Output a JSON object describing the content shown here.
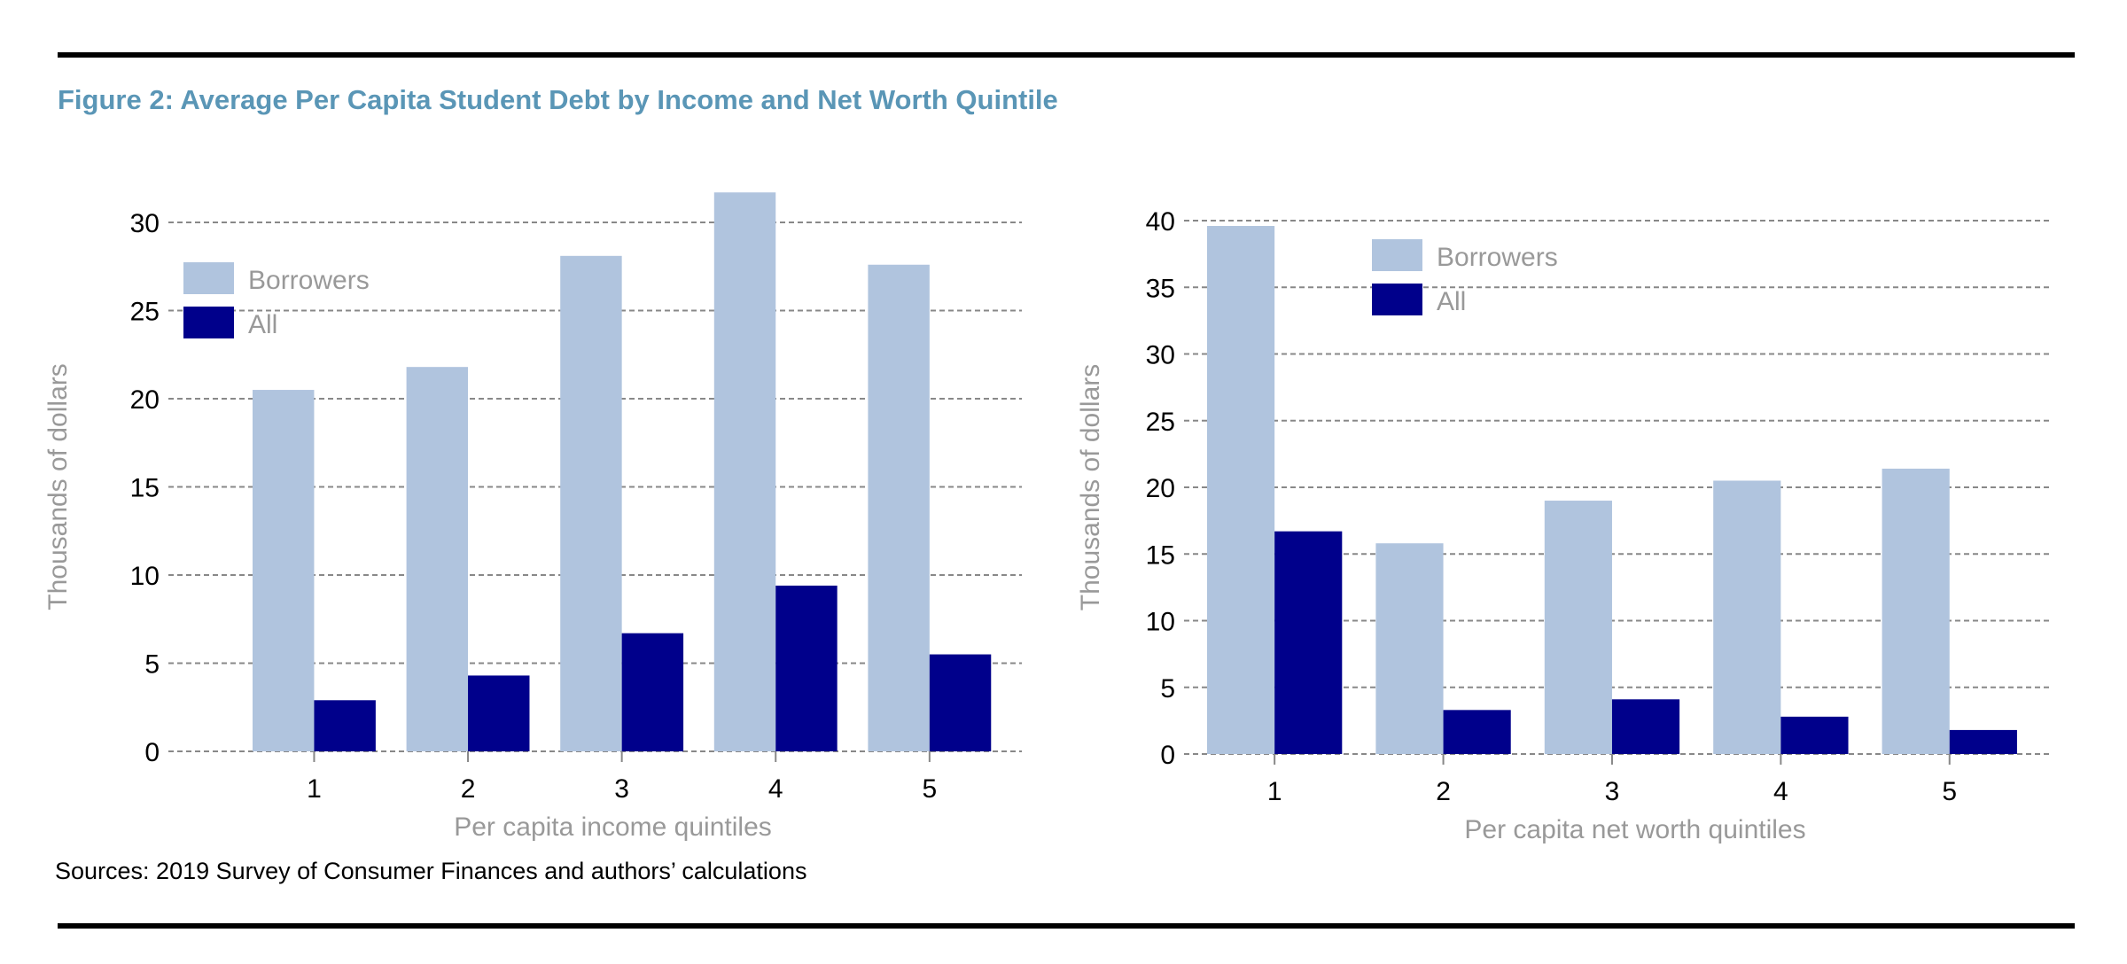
{
  "title": "Figure 2: Average Per Capita Student Debt by Income and Net Worth Quintile",
  "sources": "Sources: 2019 Survey of Consumer Finances and authors’ calculations",
  "colors": {
    "borrowers": "#b0c4de",
    "all": "#00008b",
    "title": "#5a96b6"
  },
  "chart_data": [
    {
      "type": "bar",
      "categories": [
        "1",
        "2",
        "3",
        "4",
        "5"
      ],
      "series": [
        {
          "name": "Borrowers",
          "values": [
            20.5,
            21.8,
            28.1,
            31.7,
            27.6
          ]
        },
        {
          "name": "All",
          "values": [
            2.9,
            4.3,
            6.7,
            9.4,
            5.5
          ]
        }
      ],
      "xlabel": "Per capita income quintiles",
      "ylabel": "Thousands of dollars",
      "ylim": [
        0,
        30
      ],
      "yticks": [
        0,
        5,
        10,
        15,
        20,
        25,
        30
      ],
      "grid": true,
      "legend": "top-left"
    },
    {
      "type": "bar",
      "categories": [
        "1",
        "2",
        "3",
        "4",
        "5"
      ],
      "series": [
        {
          "name": "Borrowers",
          "values": [
            39.6,
            15.8,
            19.0,
            20.5,
            21.4
          ]
        },
        {
          "name": "All",
          "values": [
            16.7,
            3.3,
            4.1,
            2.8,
            1.8
          ]
        }
      ],
      "xlabel": "Per capita net worth quintiles",
      "ylabel": "Thousands of dollars",
      "ylim": [
        0,
        40
      ],
      "yticks": [
        0,
        5,
        10,
        15,
        20,
        25,
        30,
        35,
        40
      ],
      "grid": true,
      "legend": "top-center"
    }
  ]
}
